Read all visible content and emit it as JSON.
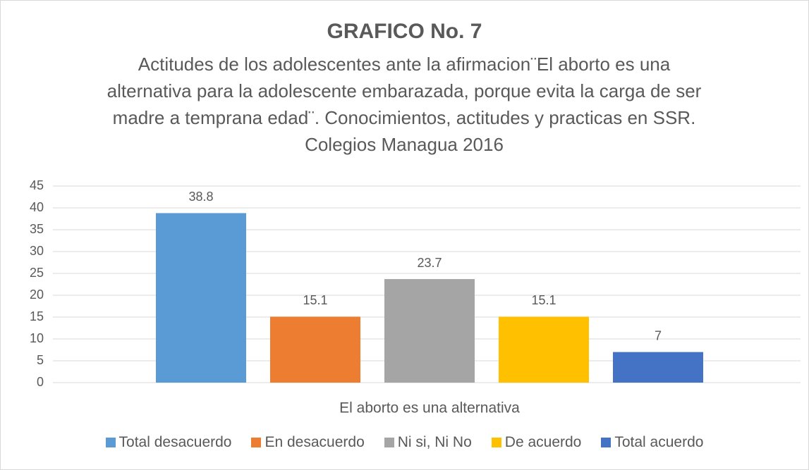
{
  "chart_data": {
    "type": "bar",
    "title": "GRAFICO No. 7",
    "subtitle": "Actitudes de los adolescentes ante la afirmacion¨El aborto es una alternativa para la adolescente embarazada, porque evita la carga de ser madre a temprana edad¨.  Conocimientos, actitudes y practicas en SSR.  Colegios Managua 2016",
    "categories": [
      "El aborto es una alternativa"
    ],
    "series": [
      {
        "name": "Total desacuerdo",
        "color": "#5b9bd5",
        "values": [
          38.8
        ]
      },
      {
        "name": "En desacuerdo",
        "color": "#ed7d31",
        "values": [
          15.1
        ]
      },
      {
        "name": "Ni si, Ni No",
        "color": "#a5a5a5",
        "values": [
          23.7
        ]
      },
      {
        "name": "De acuerdo",
        "color": "#ffc000",
        "values": [
          15.1
        ]
      },
      {
        "name": "Total acuerdo",
        "color": "#4472c4",
        "values": [
          7
        ]
      }
    ],
    "ylim": [
      0,
      45
    ],
    "yticks": [
      0,
      5,
      10,
      15,
      20,
      25,
      30,
      35,
      40,
      45
    ],
    "grid": true,
    "legend": "bottom"
  }
}
